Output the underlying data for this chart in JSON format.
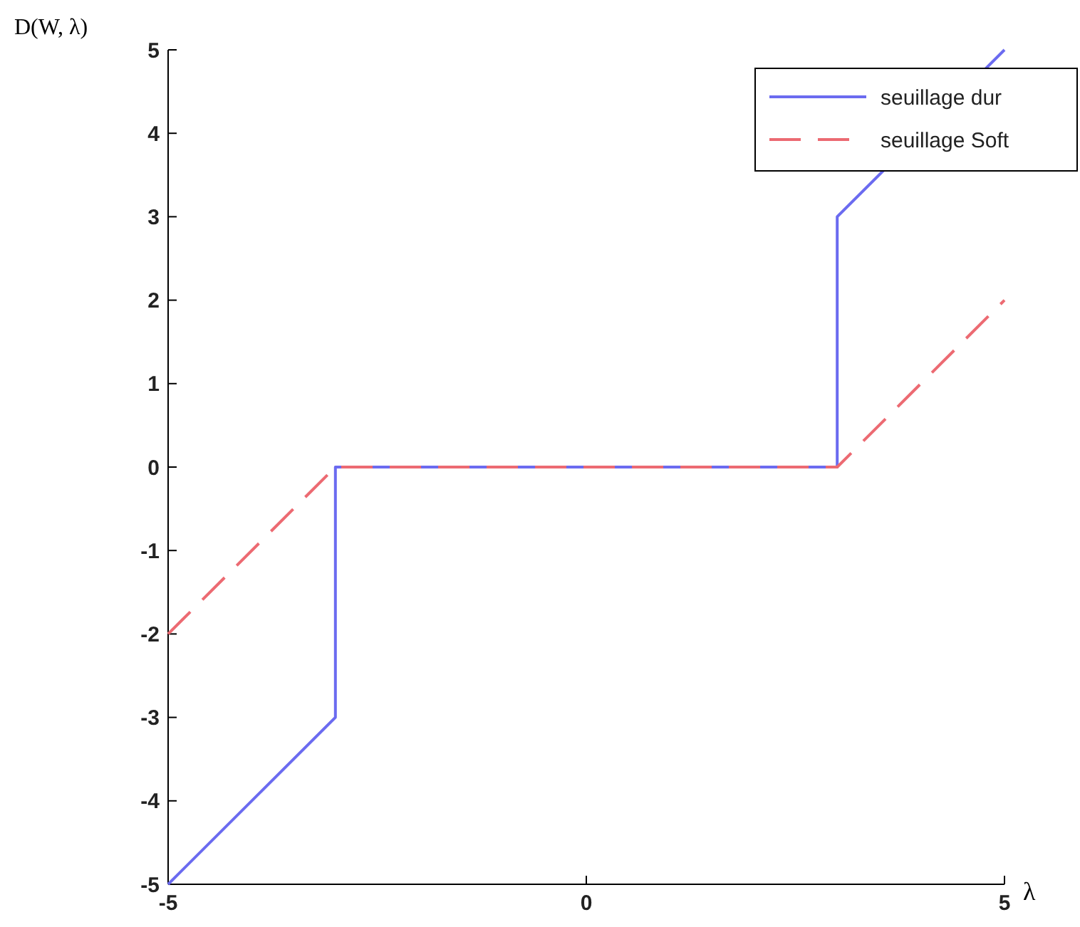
{
  "chart_data": {
    "type": "line",
    "xlabel": "λ",
    "ylabel": "D(W, λ)",
    "xlim": [
      -5,
      5
    ],
    "ylim": [
      -5,
      5
    ],
    "xticks": [
      -5,
      0,
      5
    ],
    "yticks": [
      -5,
      -4,
      -3,
      -2,
      -1,
      0,
      1,
      2,
      3,
      4,
      5
    ],
    "grid": false,
    "legend": "top right",
    "series": [
      {
        "name": "seuillage dur",
        "color": "#6b6bf0",
        "line_style": "solid",
        "x": [
          -5,
          -3,
          -3,
          3,
          3,
          5
        ],
        "values": [
          -5,
          -3,
          0,
          0,
          3,
          5
        ]
      },
      {
        "name": "seuillage Soft",
        "color": "#ec6a72",
        "line_style": "dashed",
        "x": [
          -5,
          -3,
          3,
          5
        ],
        "values": [
          -2,
          0,
          0,
          2
        ]
      }
    ]
  }
}
